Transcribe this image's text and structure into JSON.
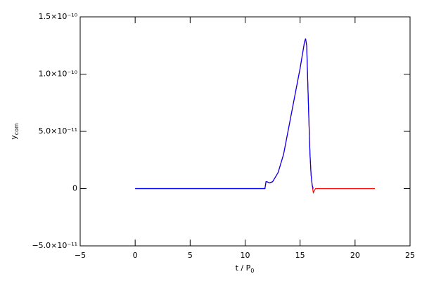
{
  "chart_data": {
    "type": "line",
    "xlabel": {
      "main": "t / P",
      "sub": "0"
    },
    "ylabel": {
      "main": "y",
      "sub": "com"
    },
    "xlim": [
      -5,
      25
    ],
    "xticks": [
      {
        "value": -5,
        "label": "−5"
      },
      0,
      5,
      10,
      15,
      20,
      25
    ],
    "ylim": [
      -5e-11,
      1.5e-10
    ],
    "yticks": [
      {
        "value": -5e-11,
        "label": "−5.0×10⁻¹¹"
      },
      0,
      {
        "value": 5e-11,
        "label": "5.0×10⁻¹¹"
      },
      {
        "value": 1e-10,
        "label": "1.0×10⁻¹⁰"
      },
      {
        "value": 1.5e-10,
        "label": "1.5×10⁻¹⁰"
      }
    ],
    "grid": false,
    "series": [
      {
        "color": "#ff0000",
        "x": [
          0,
          11.8,
          11.9,
          12.0,
          12.2,
          12.5,
          13.0,
          13.5,
          14.0,
          14.5,
          15.0,
          15.4,
          15.5,
          15.6,
          15.8,
          15.9,
          16.0,
          16.1,
          16.2,
          16.4,
          21.8
        ],
        "values": [
          0,
          0,
          6e-12,
          6e-12,
          5e-12,
          6e-12,
          1.4e-11,
          3e-11,
          5.5e-11,
          8e-11,
          1.05e-10,
          1.28e-10,
          1.31e-10,
          1.25e-10,
          6e-11,
          3e-11,
          1.2e-11,
          3e-12,
          -3.5e-12,
          0,
          0
        ]
      },
      {
        "color": "#0000ff",
        "x": [
          0,
          11.8,
          11.9,
          12.0,
          12.2,
          12.5,
          13.0,
          13.5,
          14.0,
          14.5,
          15.0,
          15.4,
          15.5,
          15.6,
          15.8,
          15.9,
          16.0,
          16.1,
          16.2
        ],
        "values": [
          0,
          0,
          6e-12,
          6e-12,
          5e-12,
          6e-12,
          1.4e-11,
          3e-11,
          5.5e-11,
          8e-11,
          1.05e-10,
          1.28e-10,
          1.31e-10,
          1.25e-10,
          6e-11,
          3e-11,
          1.2e-11,
          3e-12,
          0
        ]
      }
    ]
  }
}
